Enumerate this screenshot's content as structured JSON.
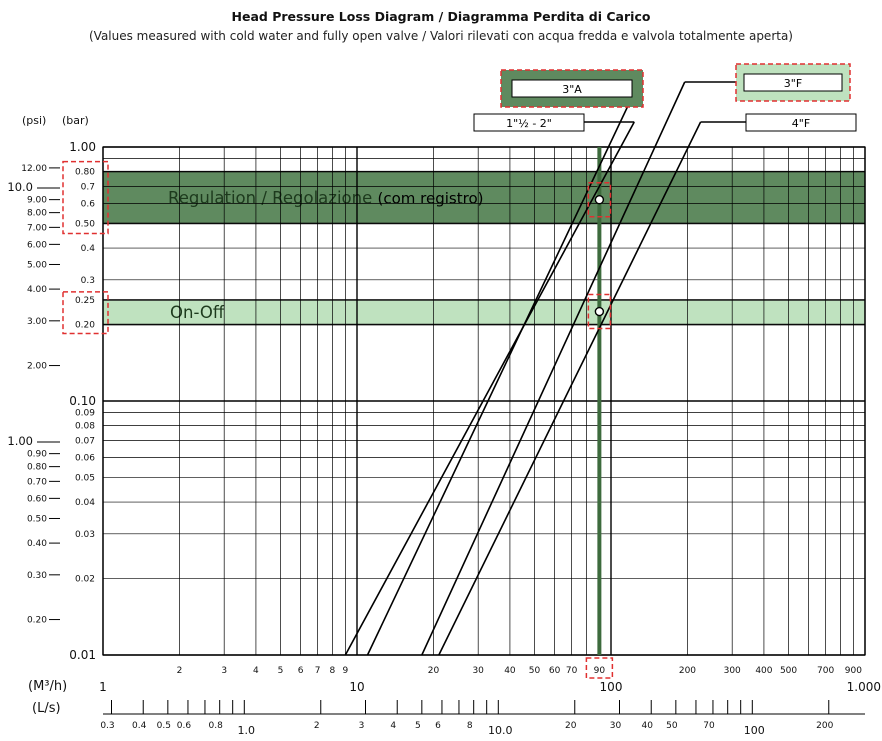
{
  "chart_data": {
    "type": "line",
    "title": "Head Pressure Loss Diagram / Diagramma Perdita di Carico",
    "subtitle": "(Values measured with cold water and fully open valve / Valori rilevati con acqua fredda e valvola totalmente aperta)",
    "xscale": "log",
    "yscale": "log",
    "xlim": [
      1,
      1000
    ],
    "ylim": [
      0.01,
      1.0
    ],
    "xlabel": "(M³/h)",
    "xlabel_secondary": "(L/s)",
    "ylabel_left": "(psi)",
    "ylabel_right": "(bar)",
    "grid": true,
    "x_tick_labels": [
      {
        "v": 1,
        "t": "1"
      },
      {
        "v": 2,
        "t": "2"
      },
      {
        "v": 3,
        "t": "3"
      },
      {
        "v": 4,
        "t": "4"
      },
      {
        "v": 5,
        "t": "5"
      },
      {
        "v": 6,
        "t": "6"
      },
      {
        "v": 7,
        "t": "7"
      },
      {
        "v": 8,
        "t": "8"
      },
      {
        "v": 9,
        "t": "9"
      },
      {
        "v": 10,
        "t": "10"
      },
      {
        "v": 20,
        "t": "20"
      },
      {
        "v": 30,
        "t": "30"
      },
      {
        "v": 40,
        "t": "40"
      },
      {
        "v": 50,
        "t": "50"
      },
      {
        "v": 60,
        "t": "60"
      },
      {
        "v": 70,
        "t": "70"
      },
      {
        "v": 90,
        "t": "90"
      },
      {
        "v": 100,
        "t": "100"
      },
      {
        "v": 200,
        "t": "200"
      },
      {
        "v": 300,
        "t": "300"
      },
      {
        "v": 400,
        "t": "400"
      },
      {
        "v": 500,
        "t": "500"
      },
      {
        "v": 700,
        "t": "700"
      },
      {
        "v": 900,
        "t": "900"
      },
      {
        "v": 1000,
        "t": "1.000"
      }
    ],
    "ls_tick_labels": [
      {
        "v": 0.3,
        "t": "0.3"
      },
      {
        "v": 0.4,
        "t": "0.4"
      },
      {
        "v": 0.5,
        "t": "0.5"
      },
      {
        "v": 0.6,
        "t": "0.6"
      },
      {
        "v": 0.8,
        "t": "0.8"
      },
      {
        "v": 1.0,
        "t": "1.0"
      },
      {
        "v": 2,
        "t": "2"
      },
      {
        "v": 3,
        "t": "3"
      },
      {
        "v": 4,
        "t": "4"
      },
      {
        "v": 5,
        "t": "5"
      },
      {
        "v": 6,
        "t": "6"
      },
      {
        "v": 8,
        "t": "8"
      },
      {
        "v": 10,
        "t": "10.0"
      },
      {
        "v": 20,
        "t": "20"
      },
      {
        "v": 30,
        "t": "30"
      },
      {
        "v": 40,
        "t": "40"
      },
      {
        "v": 50,
        "t": "50"
      },
      {
        "v": 70,
        "t": "70"
      },
      {
        "v": 100,
        "t": "100"
      },
      {
        "v": 200,
        "t": "200"
      }
    ],
    "bar_tick_labels": [
      {
        "v": 1.0,
        "t": "1.00"
      },
      {
        "v": 0.8,
        "t": "0.80"
      },
      {
        "v": 0.7,
        "t": "0.7"
      },
      {
        "v": 0.6,
        "t": "0.6"
      },
      {
        "v": 0.5,
        "t": "0.50"
      },
      {
        "v": 0.4,
        "t": "0.4"
      },
      {
        "v": 0.3,
        "t": "0.3"
      },
      {
        "v": 0.25,
        "t": "0.25"
      },
      {
        "v": 0.2,
        "t": "0.20"
      },
      {
        "v": 0.1,
        "t": "0.10"
      },
      {
        "v": 0.09,
        "t": "0.09"
      },
      {
        "v": 0.08,
        "t": "0.08"
      },
      {
        "v": 0.07,
        "t": "0.07"
      },
      {
        "v": 0.06,
        "t": "0.06"
      },
      {
        "v": 0.05,
        "t": "0.05"
      },
      {
        "v": 0.04,
        "t": "0.04"
      },
      {
        "v": 0.03,
        "t": "0.03"
      },
      {
        "v": 0.02,
        "t": "0.02"
      },
      {
        "v": 0.01,
        "t": "0.01"
      }
    ],
    "psi_tick_labels": [
      {
        "v": 12,
        "t": "12.00"
      },
      {
        "v": 10,
        "t": "10.0"
      },
      {
        "v": 9,
        "t": "9.00"
      },
      {
        "v": 8,
        "t": "8.00"
      },
      {
        "v": 7,
        "t": "7.00"
      },
      {
        "v": 6,
        "t": "6.00"
      },
      {
        "v": 5,
        "t": "5.00"
      },
      {
        "v": 4,
        "t": "4.00"
      },
      {
        "v": 3,
        "t": "3.00"
      },
      {
        "v": 2,
        "t": "2.00"
      },
      {
        "v": 1,
        "t": "1.00"
      },
      {
        "v": 0.9,
        "t": "0.90"
      },
      {
        "v": 0.8,
        "t": "0.80"
      },
      {
        "v": 0.7,
        "t": "0.70"
      },
      {
        "v": 0.6,
        "t": "0.60"
      },
      {
        "v": 0.5,
        "t": "0.50"
      },
      {
        "v": 0.4,
        "t": "0.40"
      },
      {
        "v": 0.3,
        "t": "0.30"
      },
      {
        "v": 0.2,
        "t": "0.20"
      }
    ],
    "bands": [
      {
        "label": "Regulation / Regolazione",
        "extra": "(com registro)",
        "bar_range": [
          0.5,
          0.8
        ],
        "color": "#5f8a5f"
      },
      {
        "label": "On-Off",
        "bar_range": [
          0.2,
          0.25
        ],
        "color": "#bfe2bf"
      }
    ],
    "series": [
      {
        "name": "1\"½ - 2\"",
        "x": [
          9,
          90
        ],
        "y": [
          0.01,
          0.7
        ],
        "label_style": "white"
      },
      {
        "name": "3\"A",
        "x": [
          11,
          100
        ],
        "y": [
          0.01,
          1.05
        ],
        "label_style": "dark"
      },
      {
        "name": "3\"F",
        "x": [
          18,
          100
        ],
        "y": [
          0.01,
          0.42
        ],
        "label_style": "light"
      },
      {
        "name": "4\"F",
        "x": [
          21,
          100
        ],
        "y": [
          0.01,
          0.24
        ],
        "label_style": "white"
      }
    ],
    "markers": [
      {
        "x": 90,
        "y": 0.62
      },
      {
        "x": 90,
        "y": 0.225
      }
    ],
    "highlight_x": 90,
    "colors": {
      "dark_green": "#5f8a5f",
      "light_green": "#bfe2bf",
      "highlight_line": "#3d6b3d",
      "dashed_red": "#e03030"
    }
  }
}
